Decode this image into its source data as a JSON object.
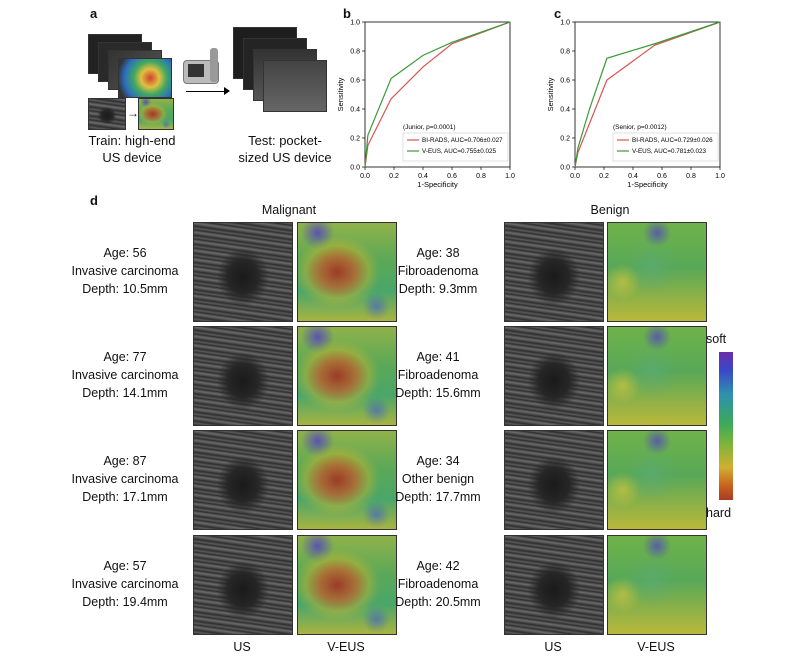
{
  "panels": {
    "a": "a",
    "b": "b",
    "c": "c",
    "d": "d"
  },
  "panel_a": {
    "train_caption": [
      "Train: high-end",
      "US device"
    ],
    "test_caption": [
      "Test: pocket-",
      "sized US device"
    ]
  },
  "chart_data": [
    {
      "type": "line",
      "panel": "b",
      "xlabel": "1-Specificity",
      "ylabel": "Sensitivity",
      "xlim": [
        0,
        1
      ],
      "ylim": [
        0,
        1
      ],
      "xticks": [
        "0.0",
        "0.2",
        "0.4",
        "0.6",
        "0.8",
        "1.0"
      ],
      "yticks": [
        "0.0",
        "0.2",
        "0.4",
        "0.6",
        "0.8",
        "1.0"
      ],
      "legend_title": "(Junior, p=0.0001)",
      "legend_position": "bottom-right",
      "series": [
        {
          "name": "BI-RADS, AUC=0.706±0.027",
          "color": "#d9534f",
          "x": [
            0,
            0.02,
            0.18,
            0.4,
            0.6,
            1.0
          ],
          "y": [
            0,
            0.15,
            0.47,
            0.69,
            0.85,
            1.0
          ]
        },
        {
          "name": "V-EUS, AUC=0.755±0.025",
          "color": "#3a9a3a",
          "x": [
            0,
            0.02,
            0.18,
            0.4,
            0.6,
            1.0
          ],
          "y": [
            0,
            0.22,
            0.61,
            0.77,
            0.86,
            1.0
          ]
        }
      ]
    },
    {
      "type": "line",
      "panel": "c",
      "xlabel": "1-Specificity",
      "ylabel": "Sensitivity",
      "xlim": [
        0,
        1
      ],
      "ylim": [
        0,
        1
      ],
      "xticks": [
        "0.0",
        "0.2",
        "0.4",
        "0.6",
        "0.8",
        "1.0"
      ],
      "yticks": [
        "0.0",
        "0.2",
        "0.4",
        "0.6",
        "0.8",
        "1.0"
      ],
      "legend_title": "(Senior, p=0.0012)",
      "legend_position": "bottom-right",
      "series": [
        {
          "name": "BI-RADS, AUC=0.729±0.026",
          "color": "#d9534f",
          "x": [
            0,
            0.02,
            0.22,
            0.55,
            1.0
          ],
          "y": [
            0,
            0.1,
            0.6,
            0.84,
            1.0
          ]
        },
        {
          "name": "V-EUS, AUC=0.781±0.023",
          "color": "#3a9a3a",
          "x": [
            0,
            0.02,
            0.1,
            0.22,
            0.55,
            1.0
          ],
          "y": [
            0,
            0.13,
            0.4,
            0.75,
            0.85,
            1.0
          ]
        }
      ]
    }
  ],
  "panel_d": {
    "malignant_header": "Malignant",
    "benign_header": "Benign",
    "us_label": "US",
    "veus_label": "V-EUS",
    "colorbar_top": "soft",
    "colorbar_bottom": "hard",
    "malignant_cases": [
      {
        "age": "Age: 56",
        "diagnosis": "Invasive carcinoma",
        "depth": "Depth: 10.5mm"
      },
      {
        "age": "Age: 77",
        "diagnosis": "Invasive carcinoma",
        "depth": "Depth: 14.1mm"
      },
      {
        "age": "Age: 87",
        "diagnosis": "Invasive carcinoma",
        "depth": "Depth: 17.1mm"
      },
      {
        "age": "Age: 57",
        "diagnosis": "Invasive carcinoma",
        "depth": "Depth: 19.4mm"
      }
    ],
    "benign_cases": [
      {
        "age": "Age: 38",
        "diagnosis": "Fibroadenoma",
        "depth": "Depth: 9.3mm"
      },
      {
        "age": "Age: 41",
        "diagnosis": "Fibroadenoma",
        "depth": "Depth: 15.6mm"
      },
      {
        "age": "Age: 34",
        "diagnosis": "Other benign",
        "depth": "Depth: 17.7mm"
      },
      {
        "age": "Age: 42",
        "diagnosis": "Fibroadenoma",
        "depth": "Depth: 20.5mm"
      }
    ]
  }
}
